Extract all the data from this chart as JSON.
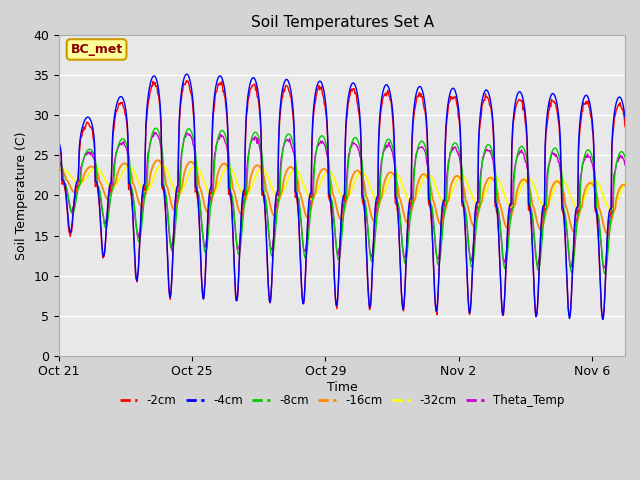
{
  "title": "Soil Temperatures Set A",
  "xlabel": "Time",
  "ylabel": "Soil Temperature (C)",
  "ylim": [
    0,
    40
  ],
  "annotation": "BC_met",
  "fig_bg_color": "#d4d4d4",
  "plot_bg_color": "#e8e8e8",
  "series_colors": {
    "-2cm": "#ff0000",
    "-4cm": "#0000ff",
    "-8cm": "#00cc00",
    "-16cm": "#ff8800",
    "-32cm": "#ffff00",
    "Theta_Temp": "#cc00cc"
  },
  "x_tick_labels": [
    "Oct 21",
    "Oct 25",
    "Oct 29",
    "Nov 2",
    "Nov 6"
  ],
  "x_tick_positions": [
    0,
    4,
    8,
    12,
    16
  ],
  "n_days": 17,
  "pts_per_day": 48
}
